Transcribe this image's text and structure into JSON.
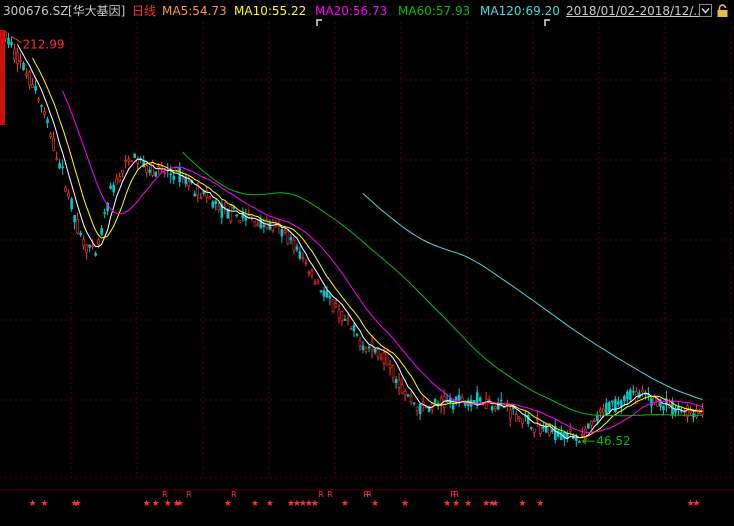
{
  "header": {
    "code": "300676.SZ",
    "name": "[华大基因]",
    "period": "日线",
    "ma5": "MA5:54.73",
    "ma10": "MA10:55.22",
    "ma20": "MA20:56.73",
    "ma60": "MA60:57.93",
    "ma120": "MA120:69.20",
    "date_range": "2018/01/02-2018/12/...",
    "dropdown_icon": "chevron-down-icon",
    "lock_icon": "lock-icon"
  },
  "colors": {
    "background": "#000000",
    "grid": "#5a0000",
    "up": "#ff3333",
    "down": "#00c8c8",
    "ma5": "#ffffff",
    "ma10": "#ffff00",
    "ma20": "#ff00ff",
    "ma60": "#00c000",
    "ma120": "#40e0e0",
    "code": "#c8c8c8",
    "period": "#ff3030",
    "ma5_label": "#ff9933",
    "ma10_label": "#ffff00",
    "ma20_label": "#ff00ff",
    "ma60_label": "#00c000",
    "ma120_label": "#40e0e0",
    "max_annot": "#ff3030",
    "min_annot": "#00c000",
    "signal": "#ff3030"
  },
  "chart_data": {
    "type": "candlestick",
    "period": "daily",
    "x_range": [
      "2018/01/02",
      "2018/12/..."
    ],
    "ylim": [
      40,
      220
    ],
    "y_log_scale": true,
    "grid": "horizontal + vertical dashed",
    "annotations": {
      "max": {
        "label": "212.99",
        "value": 212.99,
        "day": 2
      },
      "min": {
        "label": "46.52",
        "value": 46.52,
        "day": 192
      }
    },
    "anchors": [
      [
        0,
        212.99
      ],
      [
        10,
        175
      ],
      [
        18,
        132
      ],
      [
        25,
        100
      ],
      [
        30,
        92
      ],
      [
        35,
        118
      ],
      [
        42,
        135
      ],
      [
        50,
        128
      ],
      [
        58,
        126
      ],
      [
        65,
        118
      ],
      [
        72,
        110
      ],
      [
        80,
        107
      ],
      [
        88,
        104
      ],
      [
        94,
        100
      ],
      [
        100,
        90
      ],
      [
        108,
        78
      ],
      [
        115,
        70
      ],
      [
        120,
        66
      ],
      [
        127,
        63
      ],
      [
        133,
        55
      ],
      [
        138,
        52
      ],
      [
        145,
        53
      ],
      [
        155,
        54
      ],
      [
        165,
        53
      ],
      [
        172,
        50
      ],
      [
        180,
        48
      ],
      [
        188,
        47
      ],
      [
        192,
        46.52
      ],
      [
        200,
        52
      ],
      [
        208,
        55
      ],
      [
        215,
        54
      ],
      [
        222,
        52
      ],
      [
        232,
        51
      ]
    ],
    "ma_final": {
      "MA5": 54.73,
      "MA10": 55.22,
      "MA20": 56.73,
      "MA60": 57.93,
      "MA120": 69.2
    },
    "ma_periods": [
      5,
      10,
      20,
      60,
      120
    ],
    "signals": {
      "stars": [
        9,
        13,
        23,
        24,
        47,
        50,
        54,
        57,
        58,
        74,
        83,
        88,
        95,
        97,
        99,
        101,
        103,
        113,
        123,
        133,
        147,
        150,
        154,
        160,
        162,
        163,
        172,
        178,
        228,
        230
      ],
      "r_marks": [
        53,
        61,
        76,
        105,
        108,
        120,
        121,
        149,
        150
      ]
    },
    "signal_labels": {
      "star": "★",
      "r": "R"
    }
  }
}
